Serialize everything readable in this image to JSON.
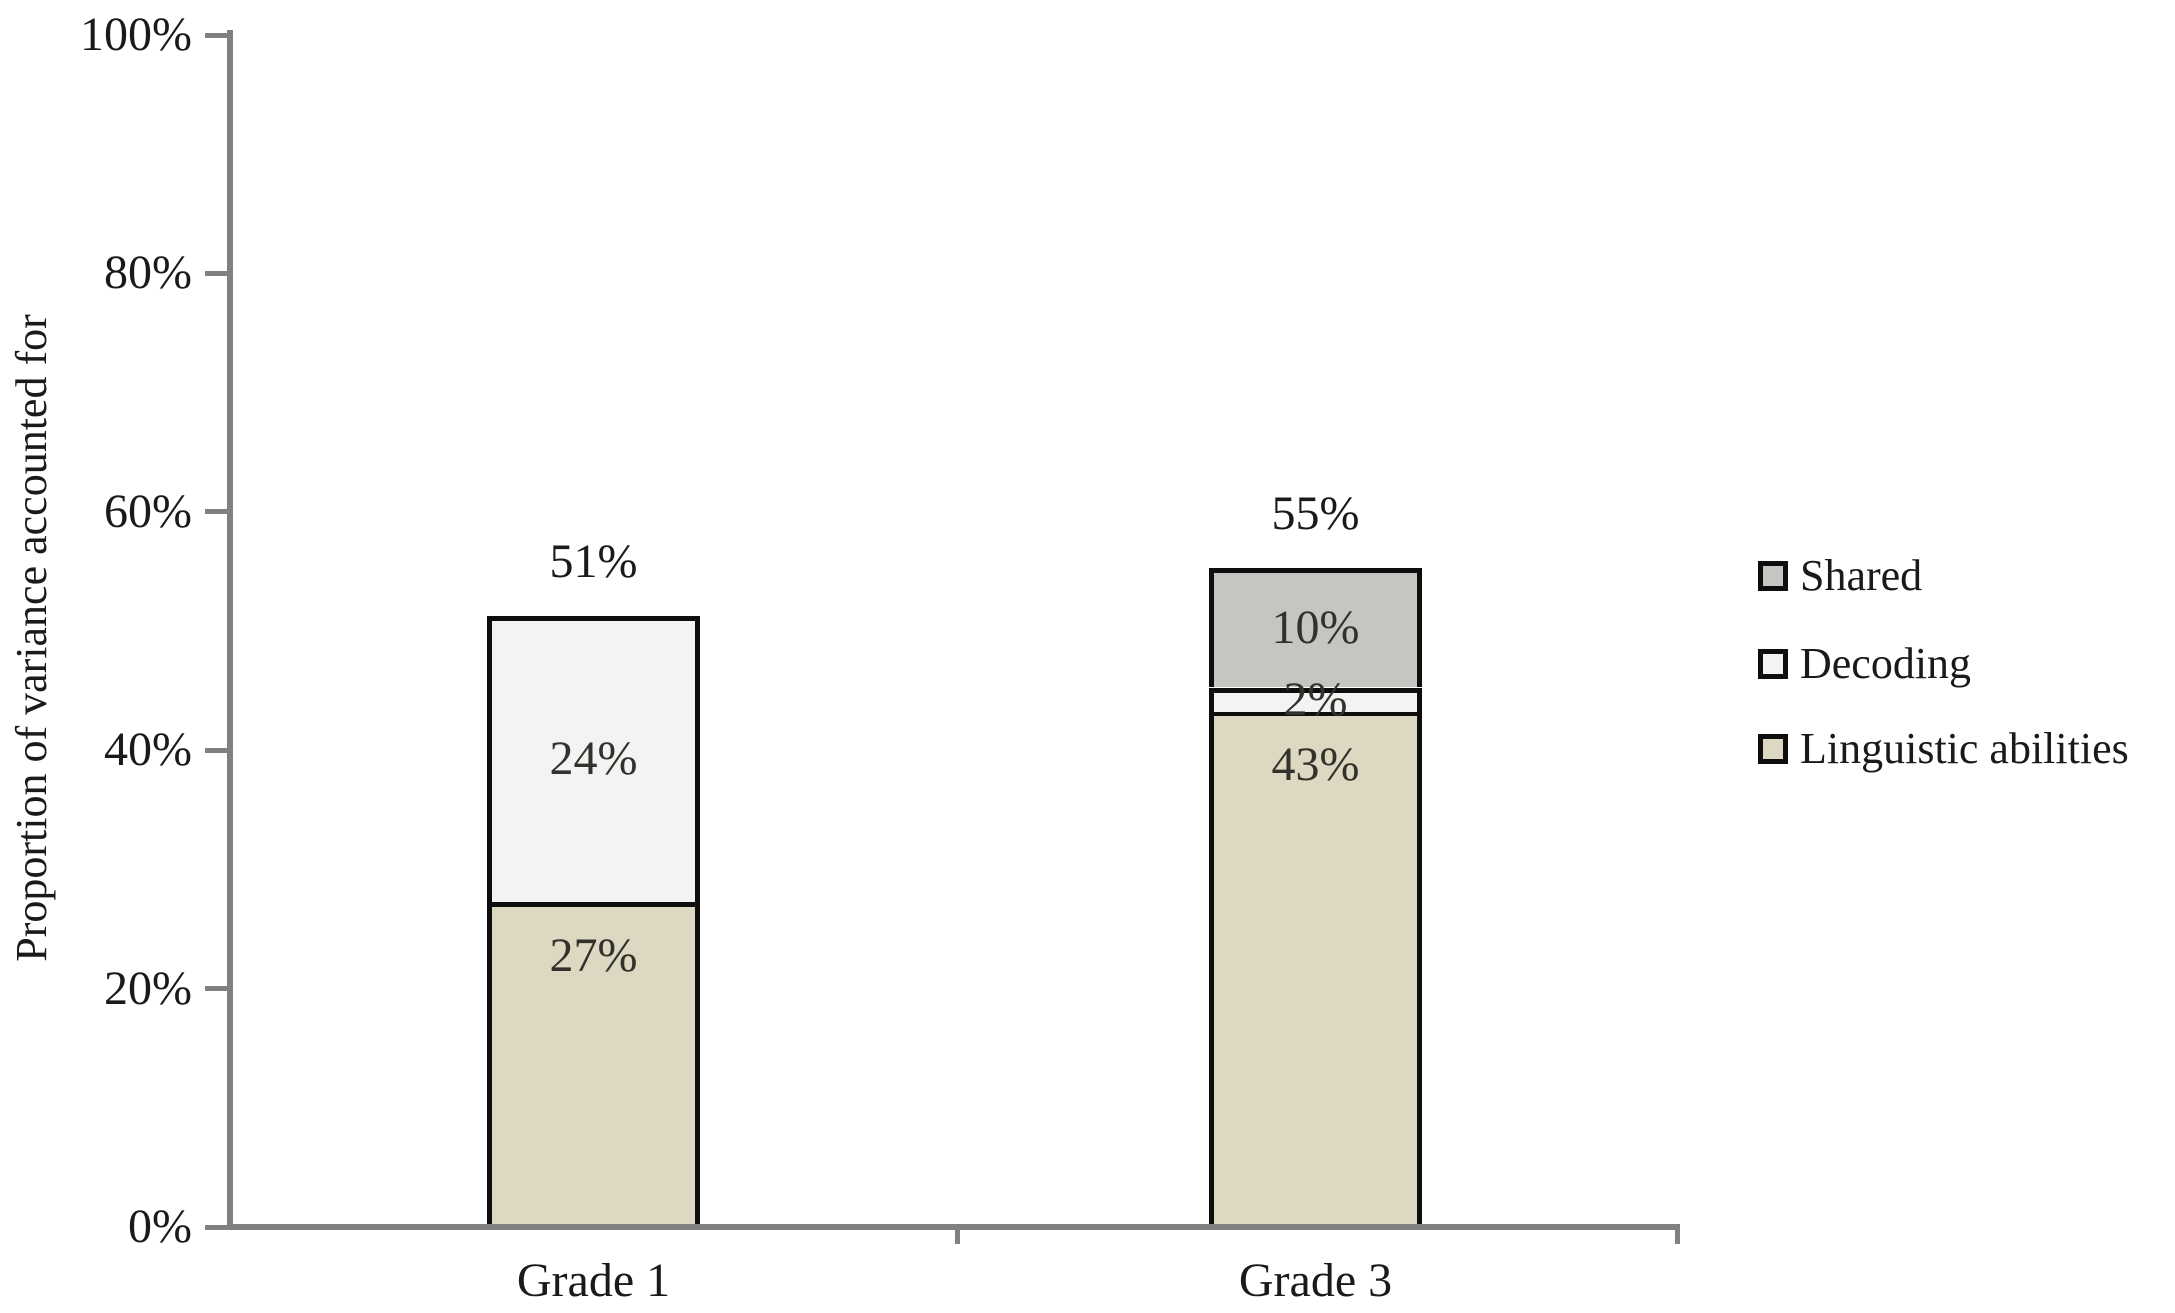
{
  "figure": {
    "background": "#ffffff",
    "axis_color": "#7f7f7f",
    "bar_border_color": "#0e0e0e",
    "text_color": "#1a1a1a",
    "segment_label_color": "#33312b"
  },
  "chart_data": {
    "type": "bar",
    "stacked": true,
    "title": "",
    "categories": [
      "Grade 1",
      "Grade 3"
    ],
    "series": [
      {
        "name": "Linguistic abilities",
        "values": [
          27,
          43
        ],
        "color": "#ddd8c2",
        "label_position": "near-top"
      },
      {
        "name": "Decoding",
        "values": [
          24,
          2
        ],
        "color": "#f3f3f4",
        "label_position": "center"
      },
      {
        "name": "Shared",
        "values": [
          0,
          10
        ],
        "color": "#c7c5c1",
        "label_position": "center"
      }
    ],
    "totals": [
      51,
      55
    ],
    "segment_labels": [
      [
        "27%",
        "24%",
        ""
      ],
      [
        "43%",
        "2%",
        "10%"
      ]
    ],
    "total_labels": [
      "51%",
      "55%"
    ],
    "ylabel": "Proportion of variance accounted for",
    "xlabel": "",
    "ylim": [
      0,
      100
    ],
    "yticks": {
      "values": [
        0,
        20,
        40,
        60,
        80,
        100
      ],
      "labels": [
        "0%",
        "20%",
        "40%",
        "60%",
        "80%",
        "100%"
      ]
    },
    "legend_position": "right",
    "legend_order": [
      "Shared",
      "Decoding",
      "Linguistic abilities"
    ],
    "grid": false
  }
}
